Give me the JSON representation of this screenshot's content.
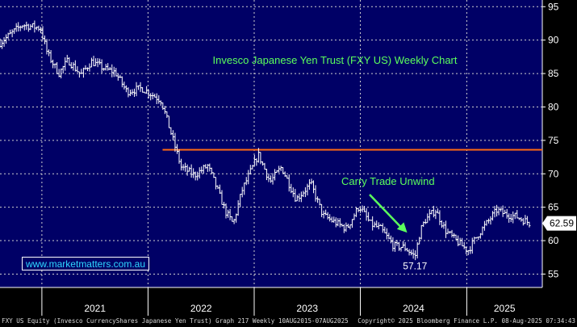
{
  "chart_data": {
    "type": "bar",
    "subtype": "ohlc-weekly",
    "title": "Invesco Japanese Yen Trust (FXY US) Weekly Chart",
    "ylim": [
      53,
      96
    ],
    "y_ticks": [
      55,
      60,
      65,
      70,
      75,
      80,
      85,
      90,
      95
    ],
    "x_tick_labels": [
      "2021",
      "2022",
      "2023",
      "2024",
      "2025"
    ],
    "x_range": [
      "2020-08-10",
      "2025-08-07"
    ],
    "grid": true,
    "background_color": "#000066",
    "price_color": "#ffffff",
    "last_price": 62.59,
    "last_price_label": "62.59",
    "horizontal_line": {
      "value": 73.6,
      "color": "#ff6a13",
      "start": "2022-02-20"
    },
    "low_label": "57.17",
    "low_point": {
      "date": "2024-07-07",
      "value": 57.17
    },
    "annotation": {
      "text": "Carry Trade Unwind",
      "color": "#5cff5c",
      "arrow_to": {
        "date": "2024-06-10",
        "value": 61.2
      }
    },
    "anchors": [
      [
        "2020-08-10",
        89.6
      ],
      [
        "2020-10-25",
        92.3
      ],
      [
        "2020-12-27",
        91.8
      ],
      [
        "2021-01-20",
        88.0
      ],
      [
        "2021-02-28",
        85.0
      ],
      [
        "2021-04-01",
        87.0
      ],
      [
        "2021-05-15",
        84.8
      ],
      [
        "2021-06-20",
        86.8
      ],
      [
        "2021-08-10",
        85.6
      ],
      [
        "2021-09-10",
        85.2
      ],
      [
        "2021-10-20",
        82.3
      ],
      [
        "2021-12-10",
        82.8
      ],
      [
        "2022-02-15",
        81.0
      ],
      [
        "2022-03-25",
        75.5
      ],
      [
        "2022-04-25",
        71.0
      ],
      [
        "2022-06-10",
        69.8
      ],
      [
        "2022-07-25",
        71.2
      ],
      [
        "2022-08-20",
        68.5
      ],
      [
        "2022-09-25",
        64.3
      ],
      [
        "2022-10-21",
        62.5
      ],
      [
        "2022-11-20",
        67.5
      ],
      [
        "2023-01-15",
        72.9
      ],
      [
        "2023-02-25",
        68.8
      ],
      [
        "2023-04-05",
        71.0
      ],
      [
        "2023-05-25",
        66.2
      ],
      [
        "2023-07-15",
        68.5
      ],
      [
        "2023-08-25",
        63.8
      ],
      [
        "2023-10-15",
        62.5
      ],
      [
        "2023-11-15",
        61.8
      ],
      [
        "2023-12-28",
        65.2
      ],
      [
        "2024-02-05",
        62.5
      ],
      [
        "2024-03-10",
        61.8
      ],
      [
        "2024-04-25",
        59.2
      ],
      [
        "2024-06-01",
        59.0
      ],
      [
        "2024-07-07",
        57.6
      ],
      [
        "2024-07-25",
        61.5
      ],
      [
        "2024-08-10",
        63.0
      ],
      [
        "2024-09-15",
        64.6
      ],
      [
        "2024-10-20",
        61.5
      ],
      [
        "2024-11-20",
        60.2
      ],
      [
        "2025-01-05",
        58.5
      ],
      [
        "2025-02-10",
        61.0
      ],
      [
        "2025-04-15",
        64.6
      ],
      [
        "2025-05-10",
        64.0
      ],
      [
        "2025-06-20",
        63.6
      ],
      [
        "2025-08-07",
        62.59
      ]
    ]
  },
  "watermark": "www.marketmatters.com.au",
  "footer": {
    "left": "FXY US Equity (Invesco CurrencyShares Japanese Yen Trust) Graph 217  Weekly 10AUG2015-07AUG2025",
    "right": "Copyright© 2025 Bloomberg Finance L.P.     08-Aug-2025 07:34:43"
  }
}
